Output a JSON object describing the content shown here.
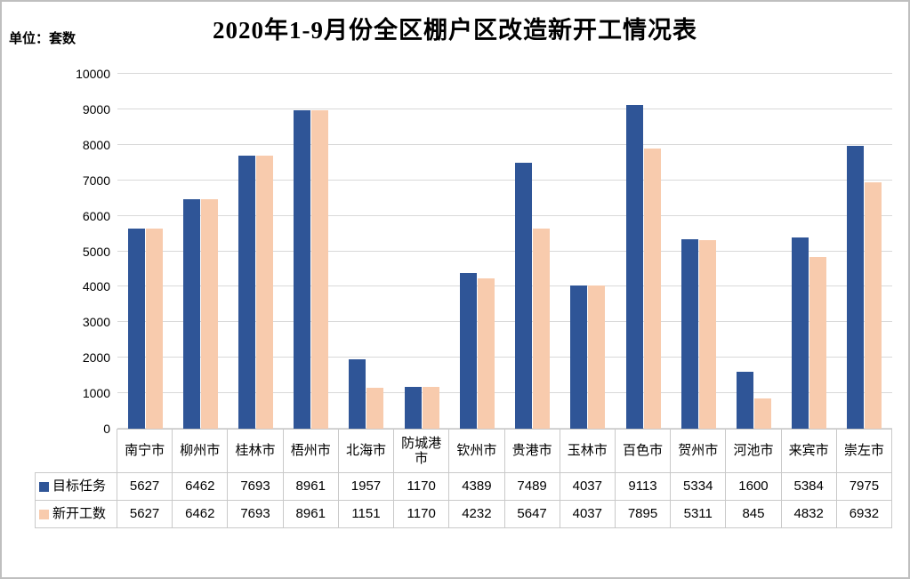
{
  "header": {
    "title": "2020年1-9月份全区棚户区改造新开工情况表",
    "unit_label": "单位：套数"
  },
  "chart_data": {
    "type": "bar",
    "title": "2020年1-9月份全区棚户区改造新开工情况表",
    "unit_label": "单位：套数",
    "categories": [
      "南宁市",
      "柳州市",
      "桂林市",
      "梧州市",
      "北海市",
      "防城港市",
      "钦州市",
      "贵港市",
      "玉林市",
      "百色市",
      "贺州市",
      "河池市",
      "来宾市",
      "崇左市"
    ],
    "series": [
      {
        "name": "目标任务",
        "color": "#2F5597",
        "values": [
          5627,
          6462,
          7693,
          8961,
          1957,
          1170,
          4389,
          7489,
          4037,
          9113,
          5334,
          1600,
          5384,
          7975
        ]
      },
      {
        "name": "新开工数",
        "color": "#F8CBAD",
        "values": [
          5627,
          6462,
          7693,
          8961,
          1151,
          1170,
          4232,
          5647,
          4037,
          7895,
          5311,
          845,
          4832,
          6932
        ]
      }
    ],
    "ylim": [
      0,
      10000
    ],
    "ytick_step": 1000,
    "grid": true,
    "gridline_color": "#D9D9D9",
    "table_border_color": "#C9C9C9",
    "legend_position": "data-table-left"
  }
}
